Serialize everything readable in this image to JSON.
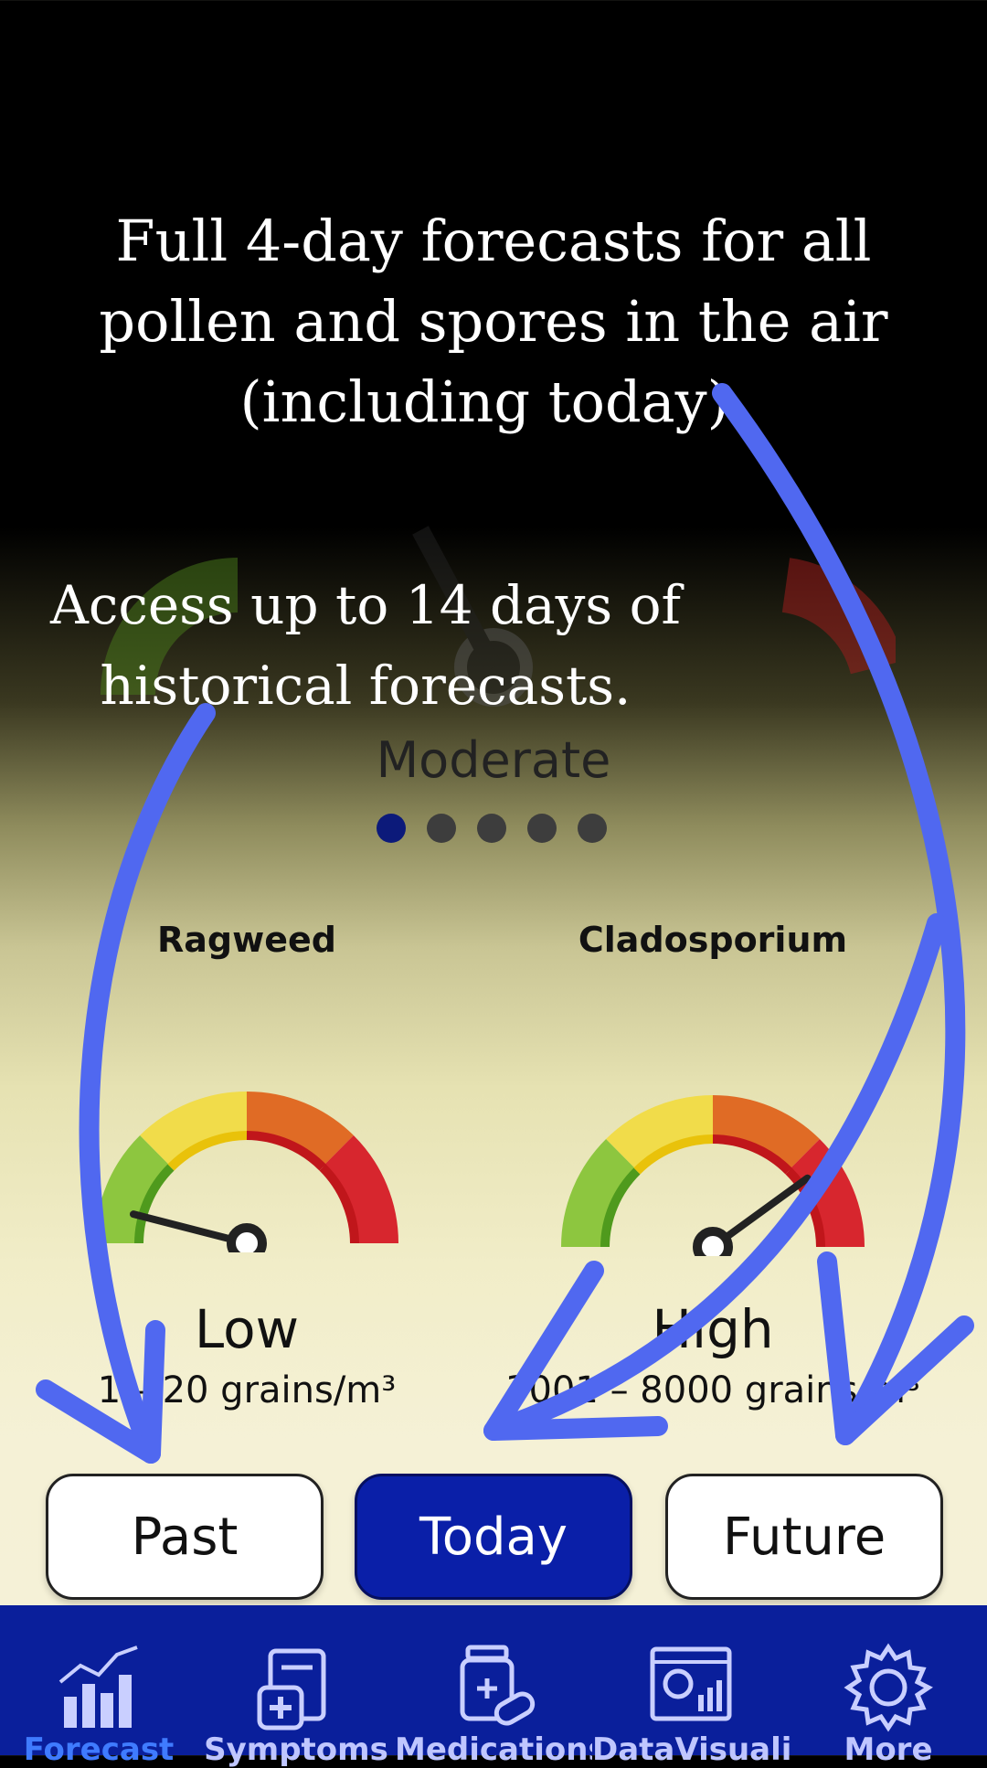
{
  "promo": {
    "headline_top": "Full 4-day forecasts for all pollen and spores in the air (including today).",
    "headline_left": "Access up to 14 days of historical forecasts."
  },
  "overview": {
    "level": "Moderate",
    "page_count": 5,
    "active_page": 1
  },
  "cards": [
    {
      "title": "Ragweed",
      "level": "Low",
      "range": "1 – 20 grains/m³",
      "needle_fraction": 0.08
    },
    {
      "title": "Cladosporium",
      "level": "High",
      "range": "3001 – 8000 grains/m³",
      "needle_fraction": 0.8
    }
  ],
  "buttons": {
    "past": "Past",
    "today": "Today",
    "future": "Future"
  },
  "nav": [
    {
      "label": "Forecast",
      "icon": "forecast-chart-icon"
    },
    {
      "label": "Symptoms",
      "icon": "symptoms-clipboard-icon"
    },
    {
      "label": "Medications",
      "icon": "medications-pill-icon"
    },
    {
      "label": "DataVisualization",
      "icon": "data-visualization-icon"
    },
    {
      "label": "More",
      "icon": "gear-icon"
    }
  ],
  "colors": {
    "accent": "#0a1fa8",
    "nav_bg": "#0a1f9b",
    "arrow": "#5068f0",
    "gauge_green": "#8dc63f",
    "gauge_yellow": "#f1dc4a",
    "gauge_orange": "#e06b25",
    "gauge_red": "#d7262e"
  }
}
